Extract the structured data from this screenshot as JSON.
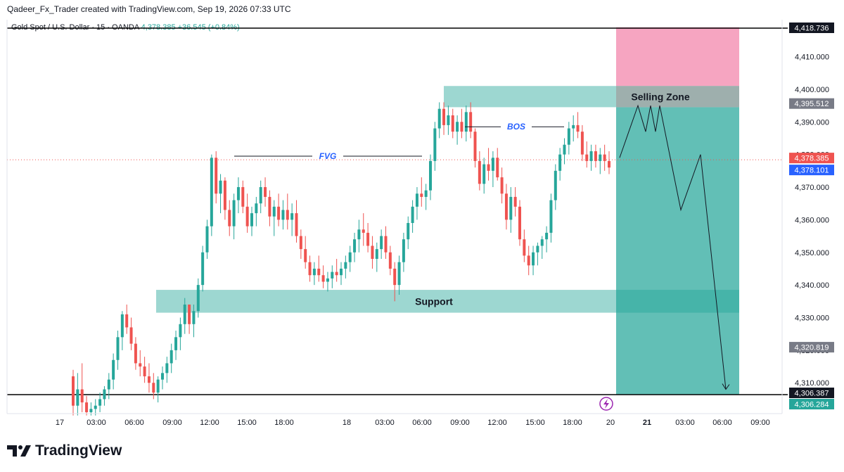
{
  "header": {
    "attribution": "Qadeer_Fx_Trader created with TradingView.com, Sep 19, 2026 07:33 UTC"
  },
  "symbol": {
    "name": "Gold Spot / U.S. Dollar · 15 · OANDA",
    "quote": "4,378.385 +36.545 (+0.84%)"
  },
  "brand": {
    "name": "TradingView"
  },
  "colors": {
    "up": "#26a69a",
    "down": "#ef5350",
    "zone_green": "#26a69a",
    "zone_pink": "#f48fb1",
    "selling_zone": "#9e9e9e",
    "annotation_blue": "#2962ff"
  },
  "chart_data": {
    "type": "candlestick",
    "ylim": [
      4303,
      4421
    ],
    "y_ticks": [
      "4,310.000",
      "4,320.000",
      "4,330.000",
      "4,340.000",
      "4,350.000",
      "4,360.000",
      "4,370.000",
      "4,380.000",
      "4,390.000",
      "4,400.000",
      "4,410.000"
    ],
    "x_ticks": [
      "17",
      "03:00",
      "06:00",
      "09:00",
      "12:00",
      "15:00",
      "18:00",
      "18",
      "03:00",
      "06:00",
      "09:00",
      "12:00",
      "15:00",
      "18:00",
      "20",
      "21",
      "03:00",
      "06:00",
      "09:00"
    ],
    "x_tick_bold": [
      false,
      false,
      false,
      false,
      false,
      false,
      false,
      false,
      false,
      false,
      false,
      false,
      false,
      false,
      false,
      true,
      false,
      false,
      false
    ],
    "candles_ohlc": [
      [
        4312,
        4314,
        4300,
        4303
      ],
      [
        4303,
        4313,
        4300,
        4308
      ],
      [
        4308,
        4316,
        4301,
        4304
      ],
      [
        4304,
        4306,
        4300,
        4301
      ],
      [
        4301,
        4304,
        4300,
        4302
      ],
      [
        4302,
        4305,
        4300,
        4303
      ],
      [
        4303,
        4307,
        4301,
        4305
      ],
      [
        4305,
        4309,
        4303,
        4308
      ],
      [
        4308,
        4313,
        4305,
        4311
      ],
      [
        4311,
        4319,
        4308,
        4317
      ],
      [
        4317,
        4326,
        4314,
        4324
      ],
      [
        4324,
        4332,
        4320,
        4331
      ],
      [
        4331,
        4334,
        4325,
        4327
      ],
      [
        4327,
        4330,
        4320,
        4322
      ],
      [
        4322,
        4324,
        4314,
        4316
      ],
      [
        4316,
        4320,
        4312,
        4315
      ],
      [
        4315,
        4318,
        4310,
        4312
      ],
      [
        4312,
        4316,
        4307,
        4310
      ],
      [
        4310,
        4313,
        4305,
        4307
      ],
      [
        4307,
        4312,
        4304,
        4311
      ],
      [
        4311,
        4315,
        4308,
        4313
      ],
      [
        4313,
        4318,
        4310,
        4316
      ],
      [
        4316,
        4322,
        4313,
        4320
      ],
      [
        4320,
        4326,
        4317,
        4324
      ],
      [
        4324,
        4330,
        4320,
        4328
      ],
      [
        4328,
        4336,
        4325,
        4334
      ],
      [
        4334,
        4333,
        4325,
        4328
      ],
      [
        4328,
        4334,
        4324,
        4332
      ],
      [
        4332,
        4342,
        4330,
        4340
      ],
      [
        4340,
        4352,
        4338,
        4350
      ],
      [
        4350,
        4360,
        4348,
        4358
      ],
      [
        4358,
        4380,
        4355,
        4379
      ],
      [
        4379,
        4381,
        4365,
        4368
      ],
      [
        4368,
        4374,
        4362,
        4372
      ],
      [
        4372,
        4373,
        4360,
        4363
      ],
      [
        4363,
        4366,
        4355,
        4358
      ],
      [
        4358,
        4368,
        4354,
        4366
      ],
      [
        4366,
        4373,
        4362,
        4370
      ],
      [
        4370,
        4372,
        4362,
        4364
      ],
      [
        4364,
        4368,
        4356,
        4358
      ],
      [
        4358,
        4364,
        4355,
        4362
      ],
      [
        4362,
        4367,
        4358,
        4365
      ],
      [
        4365,
        4372,
        4362,
        4370
      ],
      [
        4370,
        4373,
        4364,
        4367
      ],
      [
        4367,
        4369,
        4358,
        4361
      ],
      [
        4361,
        4366,
        4355,
        4364
      ],
      [
        4364,
        4368,
        4358,
        4360
      ],
      [
        4360,
        4366,
        4357,
        4363
      ],
      [
        4363,
        4368,
        4357,
        4360
      ],
      [
        4360,
        4365,
        4355,
        4362
      ],
      [
        4362,
        4366,
        4353,
        4355
      ],
      [
        4355,
        4357,
        4348,
        4351
      ],
      [
        4351,
        4355,
        4345,
        4347
      ],
      [
        4347,
        4349,
        4341,
        4343
      ],
      [
        4343,
        4347,
        4340,
        4345
      ],
      [
        4345,
        4349,
        4341,
        4343
      ],
      [
        4343,
        4346,
        4339,
        4341
      ],
      [
        4341,
        4344,
        4338,
        4342
      ],
      [
        4342,
        4346,
        4339,
        4344
      ],
      [
        4344,
        4348,
        4341,
        4343
      ],
      [
        4343,
        4347,
        4340,
        4345
      ],
      [
        4345,
        4349,
        4342,
        4347
      ],
      [
        4347,
        4352,
        4344,
        4350
      ],
      [
        4350,
        4356,
        4347,
        4354
      ],
      [
        4354,
        4360,
        4350,
        4357
      ],
      [
        4357,
        4362,
        4352,
        4356
      ],
      [
        4356,
        4359,
        4350,
        4352
      ],
      [
        4352,
        4355,
        4345,
        4348
      ],
      [
        4348,
        4353,
        4344,
        4351
      ],
      [
        4351,
        4357,
        4348,
        4355
      ],
      [
        4355,
        4358,
        4348,
        4350
      ],
      [
        4350,
        4352,
        4343,
        4345
      ],
      [
        4345,
        4347,
        4335,
        4340
      ],
      [
        4340,
        4349,
        4337,
        4347
      ],
      [
        4347,
        4356,
        4344,
        4354
      ],
      [
        4354,
        4361,
        4351,
        4359
      ],
      [
        4359,
        4366,
        4356,
        4364
      ],
      [
        4364,
        4370,
        4360,
        4368
      ],
      [
        4368,
        4373,
        4364,
        4367
      ],
      [
        4367,
        4371,
        4363,
        4369
      ],
      [
        4369,
        4380,
        4366,
        4378
      ],
      [
        4378,
        4390,
        4375,
        4388
      ],
      [
        4388,
        4396,
        4385,
        4394
      ],
      [
        4394,
        4396,
        4386,
        4389
      ],
      [
        4389,
        4395,
        4386,
        4392
      ],
      [
        4392,
        4394,
        4385,
        4387
      ],
      [
        4387,
        4392,
        4383,
        4390
      ],
      [
        4390,
        4394,
        4385,
        4387
      ],
      [
        4387,
        4395,
        4384,
        4393
      ],
      [
        4393,
        4396,
        4385,
        4387
      ],
      [
        4387,
        4388,
        4376,
        4378
      ],
      [
        4378,
        4381,
        4369,
        4371
      ],
      [
        4371,
        4379,
        4368,
        4377
      ],
      [
        4377,
        4382,
        4372,
        4375
      ],
      [
        4375,
        4381,
        4370,
        4379
      ],
      [
        4379,
        4382,
        4372,
        4373
      ],
      [
        4373,
        4376,
        4365,
        4368
      ],
      [
        4368,
        4371,
        4357,
        4360
      ],
      [
        4360,
        4370,
        4356,
        4367
      ],
      [
        4367,
        4370,
        4361,
        4364
      ],
      [
        4364,
        4366,
        4352,
        4354
      ],
      [
        4354,
        4357,
        4347,
        4349
      ],
      [
        4349,
        4352,
        4343,
        4346
      ],
      [
        4346,
        4352,
        4343,
        4350
      ],
      [
        4350,
        4353,
        4346,
        4352
      ],
      [
        4352,
        4355,
        4348,
        4354
      ],
      [
        4354,
        4358,
        4350,
        4356
      ],
      [
        4356,
        4368,
        4353,
        4366
      ],
      [
        4366,
        4377,
        4363,
        4375
      ],
      [
        4375,
        4382,
        4372,
        4380
      ],
      [
        4380,
        4385,
        4377,
        4383
      ],
      [
        4383,
        4390,
        4380,
        4388
      ],
      [
        4388,
        4392,
        4384,
        4389
      ],
      [
        4389,
        4393,
        4385,
        4387
      ],
      [
        4387,
        4389,
        4378,
        4380
      ],
      [
        4380,
        4384,
        4376,
        4378
      ],
      [
        4378,
        4383,
        4375,
        4381
      ],
      [
        4381,
        4383,
        4376,
        4378
      ],
      [
        4378,
        4382,
        4374,
        4380
      ],
      [
        4380,
        4383,
        4375,
        4378
      ],
      [
        4378,
        4381,
        4374,
        4376
      ]
    ],
    "zones": [
      {
        "name": "Support",
        "low": 4331.5,
        "high": 4338.5
      },
      {
        "name": "Selling Zone",
        "low": 4394.5,
        "high": 4401
      },
      {
        "name": "stop-zone",
        "low": 4401,
        "high": 4419
      },
      {
        "name": "target-zone",
        "low": 4306.4,
        "high": 4394.5
      }
    ],
    "annotations": [
      {
        "label": "FVG",
        "price": 4379.5
      },
      {
        "label": "BOS",
        "price": 4388.5
      }
    ],
    "horizontal_lines": [
      4418.736,
      4306.387
    ],
    "projection": {
      "x_time": [
        "20 00:00",
        "20 00:45",
        "20 01:15",
        "20 01:30",
        "20 01:45",
        "20 02:00",
        "20 03:00",
        "20 03:30",
        "20 05:30"
      ],
      "y": [
        4379,
        4395,
        4387,
        4395,
        4387,
        4395,
        4363,
        4380,
        4308
      ]
    },
    "price_labels": [
      {
        "value": "4,418.736",
        "bg": "#131722",
        "fg": "#ffffff"
      },
      {
        "value": "4,395.512",
        "bg": "#787b86",
        "fg": "#ffffff"
      },
      {
        "value": "4,378.385",
        "bg": "#ef5350",
        "fg": "#ffffff"
      },
      {
        "value": "4,378.101",
        "bg": "#2962ff",
        "fg": "#ffffff"
      },
      {
        "value": "4,320.819",
        "bg": "#787b86",
        "fg": "#ffffff"
      },
      {
        "value": "4,306.387",
        "bg": "#131722",
        "fg": "#ffffff"
      },
      {
        "value": "4,306.284",
        "bg": "#26a69a",
        "fg": "#ffffff"
      }
    ]
  }
}
